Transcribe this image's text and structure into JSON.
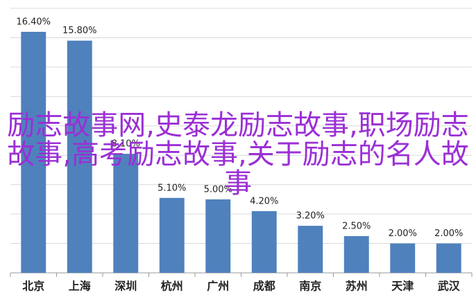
{
  "chart_data": {
    "type": "bar",
    "categories": [
      "北京",
      "上海",
      "深圳",
      "杭州",
      "广州",
      "成都",
      "南京",
      "苏州",
      "天津",
      "武汉"
    ],
    "values": [
      16.4,
      15.8,
      8.1,
      5.1,
      5.0,
      4.2,
      3.2,
      2.5,
      2.0,
      2.0
    ],
    "value_labels": [
      "16.40%",
      "15.80%",
      "8.10%",
      "5.10%",
      "5.00%",
      "4.20%",
      "3.20%",
      "2.50%",
      "2.00%",
      "2.00%"
    ],
    "color": "#4f81bd",
    "ylim": [
      0,
      18
    ],
    "yticks": [
      0,
      2,
      4,
      6,
      8,
      10,
      12,
      14,
      16,
      18
    ],
    "grid": true
  },
  "overlay": {
    "text": "励志故事网,史泰龙励志故事,职场励志故事,高考励志故事,关于励志的名人故事",
    "color": "#9b2fd6"
  }
}
